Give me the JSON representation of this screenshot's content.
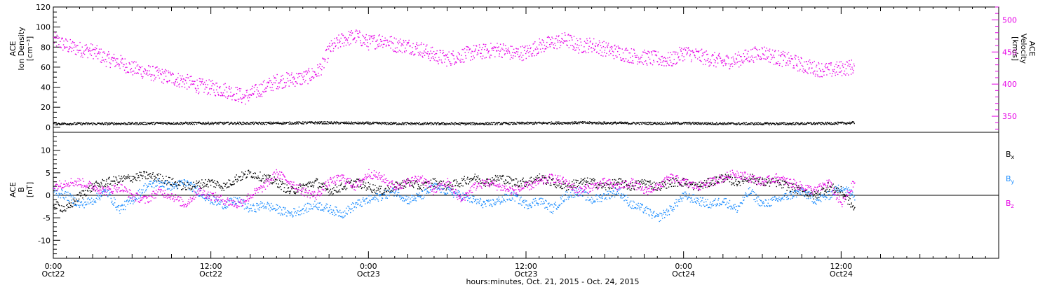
{
  "chart_data": [
    {
      "type": "scatter",
      "panel": "top",
      "ylabel_lines": [
        "ACE",
        "Ion Density",
        "[cm⁻³]"
      ],
      "ylim": [
        -5,
        120
      ],
      "yticks": [
        0,
        20,
        40,
        60,
        80,
        100,
        120
      ],
      "y2label_lines": [
        "ACE",
        "Velocity",
        "[km/s]"
      ],
      "y2lim": [
        325,
        520
      ],
      "y2ticks": [
        350,
        400,
        450,
        500
      ],
      "xlim": [
        0,
        72
      ],
      "series": [
        {
          "axis": "y2",
          "color": "#e600e6",
          "points": [
            [
              0,
              470
            ],
            [
              1,
              460
            ],
            [
              2,
              455
            ],
            [
              3,
              452
            ],
            [
              4,
              440
            ],
            [
              5,
              435
            ],
            [
              6,
              425
            ],
            [
              7,
              420
            ],
            [
              8,
              415
            ],
            [
              9,
              410
            ],
            [
              10,
              405
            ],
            [
              11,
              398
            ],
            [
              12,
              395
            ],
            [
              13,
              392
            ],
            [
              14,
              385
            ],
            [
              14.5,
              380
            ],
            [
              15,
              385
            ],
            [
              16,
              395
            ],
            [
              17,
              405
            ],
            [
              18,
              408
            ],
            [
              19,
              410
            ],
            [
              20,
              418
            ],
            [
              20.5,
              430
            ],
            [
              21,
              455
            ],
            [
              22,
              470
            ],
            [
              23,
              475
            ],
            [
              24,
              465
            ],
            [
              25,
              470
            ],
            [
              26,
              462
            ],
            [
              27,
              460
            ],
            [
              28,
              455
            ],
            [
              29,
              445
            ],
            [
              30,
              440
            ],
            [
              31,
              445
            ],
            [
              32,
              450
            ],
            [
              33,
              452
            ],
            [
              34,
              455
            ],
            [
              35,
              448
            ],
            [
              36,
              450
            ],
            [
              37,
              460
            ],
            [
              38,
              465
            ],
            [
              39,
              470
            ],
            [
              40,
              460
            ],
            [
              41,
              462
            ],
            [
              42,
              455
            ],
            [
              43,
              450
            ],
            [
              44,
              445
            ],
            [
              45,
              442
            ],
            [
              46,
              440
            ],
            [
              47,
              438
            ],
            [
              48,
              450
            ],
            [
              49,
              445
            ],
            [
              50,
              440
            ],
            [
              51,
              435
            ],
            [
              52,
              438
            ],
            [
              53,
              445
            ],
            [
              54,
              450
            ],
            [
              55,
              442
            ],
            [
              56,
              438
            ],
            [
              57,
              430
            ],
            [
              58,
              425
            ],
            [
              59,
              422
            ],
            [
              60,
              425
            ],
            [
              61,
              428
            ]
          ]
        },
        {
          "axis": "y",
          "color": "#000000",
          "points": [
            [
              0,
              4
            ],
            [
              4,
              4
            ],
            [
              8,
              4.5
            ],
            [
              12,
              4.5
            ],
            [
              16,
              4.5
            ],
            [
              20,
              5
            ],
            [
              24,
              4.5
            ],
            [
              28,
              4
            ],
            [
              32,
              4
            ],
            [
              36,
              4.5
            ],
            [
              40,
              5
            ],
            [
              44,
              4.5
            ],
            [
              48,
              4.5
            ],
            [
              52,
              4
            ],
            [
              56,
              4
            ],
            [
              60,
              4.5
            ],
            [
              61,
              5
            ]
          ]
        }
      ]
    },
    {
      "type": "scatter",
      "panel": "bottom",
      "ylabel_lines": [
        "ACE",
        "B",
        "[nT]"
      ],
      "ylim": [
        -14,
        14
      ],
      "yticks": [
        -10,
        -5,
        0,
        5,
        10
      ],
      "xlim": [
        0,
        72
      ],
      "x_tick_labels": [
        [
          "0:00",
          "Oct22"
        ],
        [
          "12:00",
          "Oct22"
        ],
        [
          "0:00",
          "Oct23"
        ],
        [
          "12:00",
          "Oct23"
        ],
        [
          "0:00",
          "Oct24"
        ],
        [
          "12:00",
          "Oct24"
        ]
      ],
      "x_tick_hours": [
        0,
        12,
        24,
        36,
        48,
        60
      ],
      "xlabel": "hours:minutes, Oct. 21, 2015 - Oct. 24, 2015",
      "legend_position": "right",
      "series": [
        {
          "name": "B",
          "sub": "x",
          "color": "#000000",
          "points": [
            [
              0,
              -2
            ],
            [
              1,
              -3
            ],
            [
              2,
              0
            ],
            [
              3,
              2
            ],
            [
              4,
              3
            ],
            [
              5,
              3.5
            ],
            [
              6,
              4
            ],
            [
              7,
              4.5
            ],
            [
              8,
              4
            ],
            [
              9,
              3
            ],
            [
              10,
              2
            ],
            [
              11,
              2.5
            ],
            [
              12,
              3
            ],
            [
              13,
              2
            ],
            [
              14,
              4
            ],
            [
              15,
              5
            ],
            [
              16,
              4
            ],
            [
              17,
              3
            ],
            [
              18,
              1
            ],
            [
              19,
              2
            ],
            [
              20,
              3
            ],
            [
              21,
              1
            ],
            [
              22,
              2
            ],
            [
              23,
              3
            ],
            [
              24,
              2
            ],
            [
              25,
              1
            ],
            [
              26,
              2
            ],
            [
              27,
              3
            ],
            [
              28,
              2
            ],
            [
              29,
              3
            ],
            [
              30,
              2
            ],
            [
              31,
              3
            ],
            [
              32,
              4
            ],
            [
              33,
              3
            ],
            [
              34,
              4
            ],
            [
              35,
              3
            ],
            [
              36,
              3
            ],
            [
              37,
              4
            ],
            [
              38,
              3
            ],
            [
              39,
              2
            ],
            [
              40,
              3
            ],
            [
              41,
              3
            ],
            [
              42,
              2
            ],
            [
              43,
              3
            ],
            [
              44,
              2
            ],
            [
              45,
              3
            ],
            [
              46,
              2
            ],
            [
              47,
              3
            ],
            [
              48,
              3
            ],
            [
              49,
              2
            ],
            [
              50,
              3
            ],
            [
              51,
              4
            ],
            [
              52,
              3
            ],
            [
              53,
              4
            ],
            [
              54,
              3
            ],
            [
              55,
              3
            ],
            [
              56,
              2
            ],
            [
              57,
              1
            ],
            [
              58,
              0
            ],
            [
              59,
              2
            ],
            [
              60,
              1
            ],
            [
              61,
              -3
            ]
          ]
        },
        {
          "name": "B",
          "sub": "y",
          "color": "#1a8cff",
          "points": [
            [
              0,
              1
            ],
            [
              1,
              0
            ],
            [
              2,
              -2
            ],
            [
              3,
              -1
            ],
            [
              4,
              1
            ],
            [
              5,
              -3
            ],
            [
              6,
              -1
            ],
            [
              7,
              2
            ],
            [
              8,
              3
            ],
            [
              9,
              2
            ],
            [
              10,
              3
            ],
            [
              11,
              1
            ],
            [
              12,
              -1
            ],
            [
              13,
              -2
            ],
            [
              14,
              -1
            ],
            [
              15,
              -3
            ],
            [
              16,
              -2
            ],
            [
              17,
              -3
            ],
            [
              18,
              -4
            ],
            [
              19,
              -3
            ],
            [
              20,
              -2
            ],
            [
              21,
              -3
            ],
            [
              22,
              -4
            ],
            [
              23,
              -2
            ],
            [
              24,
              -1
            ],
            [
              25,
              0
            ],
            [
              26,
              1
            ],
            [
              27,
              -1
            ],
            [
              28,
              0
            ],
            [
              29,
              2
            ],
            [
              30,
              1
            ],
            [
              31,
              0
            ],
            [
              32,
              -1
            ],
            [
              33,
              -2
            ],
            [
              34,
              -1
            ],
            [
              35,
              0
            ],
            [
              36,
              -2
            ],
            [
              37,
              -1
            ],
            [
              38,
              -3
            ],
            [
              39,
              0
            ],
            [
              40,
              1
            ],
            [
              41,
              -1
            ],
            [
              42,
              0
            ],
            [
              43,
              1
            ],
            [
              44,
              -2
            ],
            [
              45,
              -3
            ],
            [
              46,
              -5
            ],
            [
              47,
              -3
            ],
            [
              48,
              0
            ],
            [
              49,
              -1
            ],
            [
              50,
              -2
            ],
            [
              51,
              -1
            ],
            [
              52,
              -3
            ],
            [
              53,
              1
            ],
            [
              54,
              -2
            ],
            [
              55,
              -1
            ],
            [
              56,
              0
            ],
            [
              57,
              1
            ],
            [
              58,
              -1
            ],
            [
              59,
              0
            ],
            [
              60,
              2
            ],
            [
              61,
              0
            ]
          ]
        },
        {
          "name": "B",
          "sub": "z",
          "color": "#e600e6",
          "points": [
            [
              0,
              2
            ],
            [
              1,
              3
            ],
            [
              2,
              3
            ],
            [
              3,
              2
            ],
            [
              4,
              1
            ],
            [
              5,
              2
            ],
            [
              6,
              0
            ],
            [
              7,
              -1
            ],
            [
              8,
              1
            ],
            [
              9,
              0
            ],
            [
              10,
              -2
            ],
            [
              11,
              1
            ],
            [
              12,
              0
            ],
            [
              13,
              -1
            ],
            [
              14,
              -2
            ],
            [
              15,
              0
            ],
            [
              16,
              2
            ],
            [
              17,
              5
            ],
            [
              18,
              3
            ],
            [
              19,
              1
            ],
            [
              20,
              0
            ],
            [
              21,
              3
            ],
            [
              22,
              4
            ],
            [
              23,
              2
            ],
            [
              24,
              5
            ],
            [
              25,
              4
            ],
            [
              26,
              2
            ],
            [
              27,
              3
            ],
            [
              28,
              4
            ],
            [
              29,
              1
            ],
            [
              30,
              3
            ],
            [
              31,
              -1
            ],
            [
              32,
              2
            ],
            [
              33,
              3
            ],
            [
              34,
              2
            ],
            [
              35,
              1
            ],
            [
              36,
              2
            ],
            [
              37,
              3
            ],
            [
              38,
              4
            ],
            [
              39,
              3
            ],
            [
              40,
              1
            ],
            [
              41,
              2
            ],
            [
              42,
              3
            ],
            [
              43,
              2
            ],
            [
              44,
              3
            ],
            [
              45,
              1
            ],
            [
              46,
              2
            ],
            [
              47,
              4
            ],
            [
              48,
              3
            ],
            [
              49,
              2
            ],
            [
              50,
              3
            ],
            [
              51,
              4
            ],
            [
              52,
              5
            ],
            [
              53,
              4
            ],
            [
              54,
              3
            ],
            [
              55,
              4
            ],
            [
              56,
              3
            ],
            [
              57,
              2
            ],
            [
              58,
              1
            ],
            [
              59,
              3
            ],
            [
              60,
              -2
            ],
            [
              61,
              3
            ]
          ]
        }
      ]
    }
  ]
}
